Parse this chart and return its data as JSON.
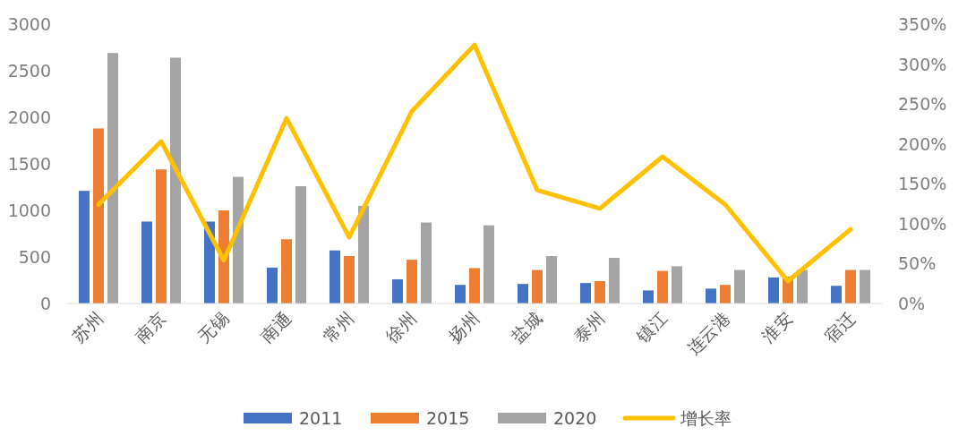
{
  "chart_data": {
    "type": "bar",
    "categories": [
      "苏州",
      "南京",
      "无锡",
      "南通",
      "常州",
      "徐州",
      "扬州",
      "盐城",
      "泰州",
      "镇江",
      "连云港",
      "淮安",
      "宿迁"
    ],
    "series": [
      {
        "name": "2011",
        "color": "#4472c4",
        "values": [
          1210,
          880,
          880,
          385,
          570,
          260,
          200,
          210,
          220,
          140,
          160,
          280,
          190
        ]
      },
      {
        "name": "2015",
        "color": "#ed7d31",
        "values": [
          1880,
          1440,
          1000,
          690,
          510,
          470,
          380,
          360,
          240,
          350,
          200,
          290,
          360
        ]
      },
      {
        "name": "2020",
        "color": "#a5a5a5",
        "values": [
          2690,
          2640,
          1360,
          1260,
          1050,
          870,
          840,
          510,
          490,
          400,
          360,
          360,
          360
        ]
      },
      {
        "name": "增长率",
        "type": "line",
        "axis": "y2",
        "color": "#ffc000",
        "values": [
          124,
          203,
          54,
          232,
          83,
          241,
          324,
          142,
          119,
          184,
          124,
          28,
          93
        ]
      }
    ],
    "ylim": [
      0,
      3000
    ],
    "yticks": [
      0,
      500,
      1000,
      1500,
      2000,
      2500,
      3000
    ],
    "y2lim": [
      0,
      350
    ],
    "y2ticks": [
      {
        "value": 0,
        "label": "0%"
      },
      {
        "value": 50,
        "label": "50%"
      },
      {
        "value": 100,
        "label": "100%"
      },
      {
        "value": 150,
        "label": "150%"
      },
      {
        "value": 200,
        "label": "200%"
      },
      {
        "value": 250,
        "label": "250%"
      },
      {
        "value": 300,
        "label": "300%"
      },
      {
        "value": 350,
        "label": "350%"
      }
    ],
    "legend": "bottom",
    "grid": false
  }
}
